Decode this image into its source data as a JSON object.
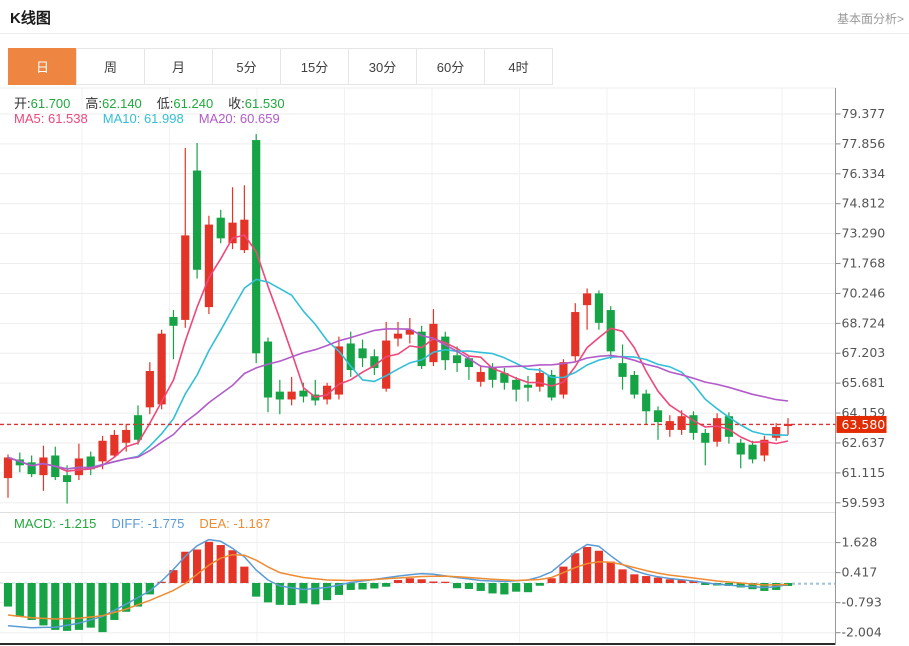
{
  "header": {
    "title": "K线图",
    "link_label": "基本面分析>"
  },
  "tabs": [
    {
      "label": "日",
      "active": true
    },
    {
      "label": "周",
      "active": false
    },
    {
      "label": "月",
      "active": false
    },
    {
      "label": "5分",
      "active": false
    },
    {
      "label": "15分",
      "active": false
    },
    {
      "label": "30分",
      "active": false
    },
    {
      "label": "60分",
      "active": false
    },
    {
      "label": "4时",
      "active": false
    }
  ],
  "indicator_rows": {
    "ohlc": [
      {
        "label": "开:",
        "value": "61.700"
      },
      {
        "label": "高:",
        "value": "62.140"
      },
      {
        "label": "低:",
        "value": "61.240"
      },
      {
        "label": "收:",
        "value": "61.530"
      }
    ],
    "ma": [
      {
        "label": "MA5:",
        "value": "61.538",
        "color": "#ef4779"
      },
      {
        "label": "MA10:",
        "value": "61.998",
        "color": "#33bfd8"
      },
      {
        "label": "MA20:",
        "value": "60.659",
        "color": "#b25bc9"
      }
    ],
    "macd": [
      {
        "label": "MACD:",
        "value": "-1.215",
        "color": "#21a83c"
      },
      {
        "label": "DIFF:",
        "value": "-1.775",
        "color": "#5b9bd5"
      },
      {
        "label": "DEA:",
        "value": "-1.167",
        "color": "#ef8b31"
      }
    ]
  },
  "price_marker": {
    "label": "63.580",
    "value": 63.58
  },
  "chart_data": {
    "type": "candlestick+macd",
    "title": "K线图 (daily K-line with MA5/MA10/MA20 and MACD)",
    "legend_position": "top-left",
    "grid": true,
    "main_panel": {
      "y_axis_side": "right",
      "y_ticks": [
        "79.377",
        "77.856",
        "76.334",
        "74.812",
        "73.290",
        "71.768",
        "70.246",
        "68.724",
        "67.203",
        "65.681",
        "64.159",
        "62.637",
        "61.115",
        "59.593"
      ],
      "y_max": 79.377,
      "y_min": 59.593,
      "last_price": 63.58,
      "ma_periods": [
        5,
        10,
        20
      ],
      "candles_ohlc": [
        [
          60.85,
          62.05,
          59.85,
          61.9
        ],
        [
          61.8,
          62.15,
          61.15,
          61.5
        ],
        [
          61.65,
          62.0,
          60.9,
          61.05
        ],
        [
          61.0,
          62.5,
          60.2,
          61.9
        ],
        [
          62.0,
          62.45,
          60.75,
          60.9
        ],
        [
          61.0,
          61.5,
          59.55,
          60.65
        ],
        [
          61.0,
          62.6,
          60.75,
          61.85
        ],
        [
          61.95,
          62.2,
          61.0,
          61.3
        ],
        [
          61.7,
          63.0,
          61.3,
          62.75
        ],
        [
          62.0,
          63.3,
          61.9,
          63.05
        ],
        [
          62.65,
          63.6,
          62.2,
          63.3
        ],
        [
          64.05,
          64.55,
          62.55,
          62.8
        ],
        [
          64.45,
          66.75,
          64.1,
          66.3
        ],
        [
          64.6,
          68.4,
          64.35,
          68.2
        ],
        [
          69.05,
          69.4,
          66.9,
          68.6
        ],
        [
          68.9,
          77.65,
          68.5,
          73.2
        ],
        [
          76.5,
          77.9,
          71.0,
          71.45
        ],
        [
          69.55,
          74.2,
          69.2,
          73.75
        ],
        [
          74.1,
          74.5,
          72.8,
          73.05
        ],
        [
          72.8,
          75.65,
          72.5,
          73.85
        ],
        [
          72.45,
          75.75,
          72.3,
          74.0
        ],
        [
          78.05,
          78.35,
          66.7,
          67.2
        ],
        [
          67.8,
          68.0,
          64.2,
          64.95
        ],
        [
          65.25,
          65.85,
          64.1,
          64.85
        ],
        [
          64.85,
          66.0,
          64.55,
          65.25
        ],
        [
          65.3,
          65.7,
          64.7,
          65.0
        ],
        [
          65.1,
          65.85,
          64.55,
          64.8
        ],
        [
          64.85,
          65.7,
          64.6,
          65.55
        ],
        [
          65.1,
          68.05,
          64.85,
          67.55
        ],
        [
          67.7,
          68.3,
          66.0,
          66.35
        ],
        [
          67.45,
          67.9,
          66.5,
          66.95
        ],
        [
          67.05,
          67.4,
          66.1,
          66.45
        ],
        [
          65.4,
          68.8,
          65.25,
          67.85
        ],
        [
          67.95,
          68.8,
          67.55,
          68.2
        ],
        [
          68.15,
          69.0,
          67.7,
          68.4
        ],
        [
          68.3,
          68.6,
          66.4,
          66.55
        ],
        [
          66.75,
          69.45,
          66.55,
          68.7
        ],
        [
          68.05,
          68.3,
          66.35,
          66.85
        ],
        [
          67.1,
          67.55,
          66.25,
          66.7
        ],
        [
          66.95,
          67.1,
          65.85,
          66.5
        ],
        [
          65.75,
          66.6,
          65.5,
          66.25
        ],
        [
          66.5,
          66.7,
          65.45,
          65.85
        ],
        [
          66.2,
          66.45,
          65.35,
          65.7
        ],
        [
          65.85,
          66.0,
          64.75,
          65.35
        ],
        [
          65.6,
          66.05,
          64.75,
          65.45
        ],
        [
          65.5,
          66.45,
          65.25,
          66.2
        ],
        [
          66.1,
          66.35,
          64.8,
          64.95
        ],
        [
          65.1,
          66.9,
          64.9,
          66.75
        ],
        [
          67.05,
          69.75,
          66.8,
          69.3
        ],
        [
          69.65,
          70.5,
          68.4,
          70.25
        ],
        [
          70.25,
          70.4,
          68.4,
          68.75
        ],
        [
          69.4,
          69.6,
          66.9,
          67.3
        ],
        [
          66.7,
          67.65,
          65.35,
          66.0
        ],
        [
          66.1,
          66.3,
          64.9,
          65.1
        ],
        [
          65.15,
          65.35,
          63.55,
          64.25
        ],
        [
          64.3,
          64.5,
          62.8,
          63.7
        ],
        [
          63.3,
          64.05,
          62.95,
          63.75
        ],
        [
          63.3,
          64.3,
          63.05,
          64.0
        ],
        [
          64.05,
          64.25,
          62.8,
          63.15
        ],
        [
          63.15,
          63.35,
          61.5,
          62.65
        ],
        [
          62.7,
          64.15,
          62.45,
          63.9
        ],
        [
          64.0,
          64.2,
          62.6,
          62.95
        ],
        [
          62.65,
          62.85,
          61.35,
          62.05
        ],
        [
          62.55,
          62.75,
          61.6,
          61.8
        ],
        [
          62.0,
          63.0,
          61.7,
          62.8
        ],
        [
          62.9,
          63.65,
          62.75,
          63.45
        ],
        [
          63.5,
          63.9,
          63.05,
          63.6
        ]
      ]
    },
    "macd_panel": {
      "y_ticks": [
        "1.628",
        "0.417",
        "-0.793",
        "-2.004"
      ],
      "histogram": [
        -0.95,
        -1.36,
        -1.49,
        -1.71,
        -1.89,
        -1.93,
        -1.89,
        -1.8,
        -1.98,
        -1.49,
        -1.16,
        -0.95,
        -0.46,
        0.05,
        0.52,
        1.26,
        1.35,
        1.66,
        1.53,
        1.32,
        0.66,
        -0.55,
        -0.78,
        -0.88,
        -0.89,
        -0.82,
        -0.86,
        -0.69,
        -0.48,
        -0.28,
        -0.26,
        -0.22,
        -0.15,
        0.12,
        0.19,
        0.15,
        0.06,
        0.05,
        -0.21,
        -0.24,
        -0.32,
        -0.42,
        -0.46,
        -0.35,
        -0.37,
        -0.11,
        0.19,
        0.66,
        1.2,
        1.45,
        1.3,
        0.86,
        0.55,
        0.35,
        0.28,
        0.22,
        0.15,
        0.12,
        0.1,
        -0.08,
        -0.1,
        -0.12,
        -0.18,
        -0.25,
        -0.32,
        -0.28,
        -0.12
      ],
      "diff_points": [
        [
          0,
          -1.72
        ],
        [
          2,
          -1.8
        ],
        [
          4,
          -1.78
        ],
        [
          6,
          -1.62
        ],
        [
          8,
          -1.35
        ],
        [
          10,
          -0.85
        ],
        [
          12,
          -0.32
        ],
        [
          13,
          0.08
        ],
        [
          14,
          0.55
        ],
        [
          15,
          1.08
        ],
        [
          16,
          1.5
        ],
        [
          17,
          1.75
        ],
        [
          18,
          1.68
        ],
        [
          19,
          1.4
        ],
        [
          20,
          1.05
        ],
        [
          21,
          0.52
        ],
        [
          22,
          0.12
        ],
        [
          23,
          -0.12
        ],
        [
          25,
          -0.26
        ],
        [
          27,
          -0.18
        ],
        [
          29,
          0.02
        ],
        [
          31,
          0.14
        ],
        [
          33,
          0.28
        ],
        [
          35,
          0.38
        ],
        [
          36,
          0.35
        ],
        [
          38,
          0.22
        ],
        [
          40,
          0.1
        ],
        [
          42,
          0.06
        ],
        [
          44,
          0.12
        ],
        [
          45,
          0.25
        ],
        [
          46,
          0.45
        ],
        [
          47,
          0.85
        ],
        [
          48,
          1.25
        ],
        [
          49,
          1.55
        ],
        [
          50,
          1.48
        ],
        [
          51,
          1.1
        ],
        [
          52,
          0.75
        ],
        [
          53,
          0.5
        ],
        [
          54,
          0.35
        ],
        [
          55,
          0.25
        ],
        [
          56,
          0.18
        ],
        [
          58,
          0.08
        ],
        [
          60,
          -0.05
        ],
        [
          62,
          -0.12
        ],
        [
          64,
          -0.18
        ],
        [
          65,
          -0.15
        ],
        [
          66,
          -0.06
        ]
      ],
      "dea_points": [
        [
          0,
          -1.29
        ],
        [
          2,
          -1.4
        ],
        [
          4,
          -1.45
        ],
        [
          6,
          -1.42
        ],
        [
          8,
          -1.32
        ],
        [
          10,
          -1.05
        ],
        [
          12,
          -0.7
        ],
        [
          14,
          -0.3
        ],
        [
          15,
          -0.02
        ],
        [
          16,
          0.35
        ],
        [
          17,
          0.72
        ],
        [
          18,
          1.0
        ],
        [
          19,
          1.14
        ],
        [
          20,
          1.12
        ],
        [
          21,
          0.92
        ],
        [
          22,
          0.65
        ],
        [
          23,
          0.42
        ],
        [
          25,
          0.22
        ],
        [
          27,
          0.12
        ],
        [
          29,
          0.1
        ],
        [
          31,
          0.14
        ],
        [
          33,
          0.2
        ],
        [
          35,
          0.26
        ],
        [
          37,
          0.28
        ],
        [
          39,
          0.22
        ],
        [
          41,
          0.15
        ],
        [
          43,
          0.1
        ],
        [
          45,
          0.14
        ],
        [
          46,
          0.22
        ],
        [
          47,
          0.42
        ],
        [
          48,
          0.62
        ],
        [
          49,
          0.78
        ],
        [
          50,
          0.86
        ],
        [
          51,
          0.84
        ],
        [
          52,
          0.74
        ],
        [
          53,
          0.62
        ],
        [
          54,
          0.5
        ],
        [
          55,
          0.4
        ],
        [
          56,
          0.32
        ],
        [
          58,
          0.2
        ],
        [
          60,
          0.08
        ],
        [
          62,
          0.0
        ],
        [
          64,
          -0.08
        ],
        [
          66,
          -0.06
        ]
      ]
    },
    "colors": {
      "up": "#e43428",
      "down": "#16a346",
      "ma5": "#ef4779",
      "ma10": "#33bfd8",
      "ma20": "#b25bc9",
      "diff_line": "#5b9bd5",
      "dea_line": "#ef8b31",
      "last_price_line": "#e03131",
      "price_badge_bg": "#e22b00",
      "axis_text": "#555555",
      "grid": "#ededed",
      "tab_active_bg": "#ee8541"
    }
  }
}
